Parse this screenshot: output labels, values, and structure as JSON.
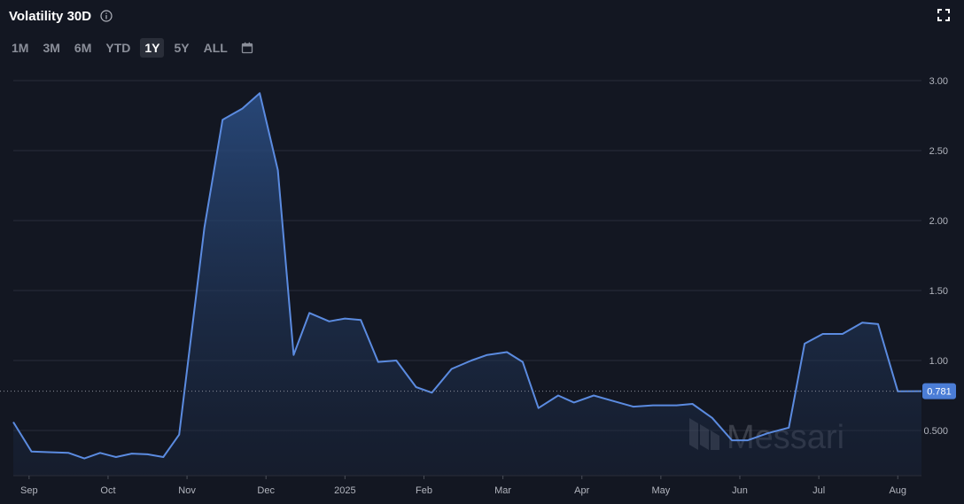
{
  "header": {
    "title": "Volatility 30D",
    "info_icon": "info-icon",
    "expand_icon": "fullscreen-icon"
  },
  "ranges": [
    {
      "label": "1M",
      "active": false
    },
    {
      "label": "3M",
      "active": false
    },
    {
      "label": "6M",
      "active": false
    },
    {
      "label": "YTD",
      "active": false
    },
    {
      "label": "1Y",
      "active": true
    },
    {
      "label": "5Y",
      "active": false
    },
    {
      "label": "ALL",
      "active": false
    }
  ],
  "calendar_icon": "calendar-icon",
  "watermark": "Messari",
  "colors": {
    "background": "#131722",
    "line": "#5b8be0",
    "fill": "#1f3a63",
    "last_badge": "#4b7dd6",
    "grid": "#2a2e39"
  },
  "chart_data": {
    "type": "area",
    "title": "Volatility 30D",
    "xlabel": "",
    "ylabel": "",
    "ylim": [
      0.2,
      3.1
    ],
    "y_ticks": [
      "3.00",
      "2.50",
      "2.00",
      "1.50",
      "1.00",
      "0.500"
    ],
    "y_tick_values": [
      3.0,
      2.5,
      2.0,
      1.5,
      1.0,
      0.5
    ],
    "x_ticks": [
      {
        "label": "Sep",
        "x": 0.8
      },
      {
        "label": "Oct",
        "x": 1.8
      },
      {
        "label": "Nov",
        "x": 2.8
      },
      {
        "label": "Dec",
        "x": 3.8
      },
      {
        "label": "2025",
        "x": 4.8
      },
      {
        "label": "Feb",
        "x": 5.8
      },
      {
        "label": "Mar",
        "x": 6.8
      },
      {
        "label": "Apr",
        "x": 7.8
      },
      {
        "label": "May",
        "x": 8.8
      },
      {
        "label": "Jun",
        "x": 9.8
      },
      {
        "label": "Jul",
        "x": 10.8
      },
      {
        "label": "Aug",
        "x": 11.8
      }
    ],
    "grid": true,
    "last_value": "0.781",
    "series": [
      {
        "values": [
          [
            0.6,
            0.56
          ],
          [
            0.83,
            0.35
          ],
          [
            1.05,
            0.345
          ],
          [
            1.3,
            0.34
          ],
          [
            1.5,
            0.3
          ],
          [
            1.7,
            0.34
          ],
          [
            1.9,
            0.31
          ],
          [
            2.1,
            0.335
          ],
          [
            2.3,
            0.33
          ],
          [
            2.5,
            0.31
          ],
          [
            2.7,
            0.47
          ],
          [
            3.02,
            1.95
          ],
          [
            3.25,
            2.72
          ],
          [
            3.5,
            2.8
          ],
          [
            3.72,
            2.91
          ],
          [
            3.95,
            2.36
          ],
          [
            4.15,
            1.04
          ],
          [
            4.35,
            1.34
          ],
          [
            4.6,
            1.28
          ],
          [
            4.8,
            1.3
          ],
          [
            5.0,
            1.29
          ],
          [
            5.22,
            0.99
          ],
          [
            5.45,
            1.0
          ],
          [
            5.7,
            0.81
          ],
          [
            5.9,
            0.77
          ],
          [
            6.15,
            0.94
          ],
          [
            6.4,
            1.0
          ],
          [
            6.6,
            1.04
          ],
          [
            6.85,
            1.06
          ],
          [
            7.05,
            0.99
          ],
          [
            7.25,
            0.66
          ],
          [
            7.5,
            0.75
          ],
          [
            7.7,
            0.7
          ],
          [
            7.95,
            0.75
          ],
          [
            8.2,
            0.71
          ],
          [
            8.45,
            0.67
          ],
          [
            8.7,
            0.68
          ],
          [
            9.0,
            0.68
          ],
          [
            9.2,
            0.69
          ],
          [
            9.45,
            0.59
          ],
          [
            9.7,
            0.43
          ],
          [
            9.9,
            0.43
          ],
          [
            10.15,
            0.48
          ],
          [
            10.42,
            0.52
          ],
          [
            10.62,
            1.12
          ],
          [
            10.85,
            1.19
          ],
          [
            11.1,
            1.19
          ],
          [
            11.35,
            1.27
          ],
          [
            11.55,
            1.26
          ],
          [
            11.8,
            0.78
          ],
          [
            12.1,
            0.781
          ]
        ]
      }
    ]
  }
}
